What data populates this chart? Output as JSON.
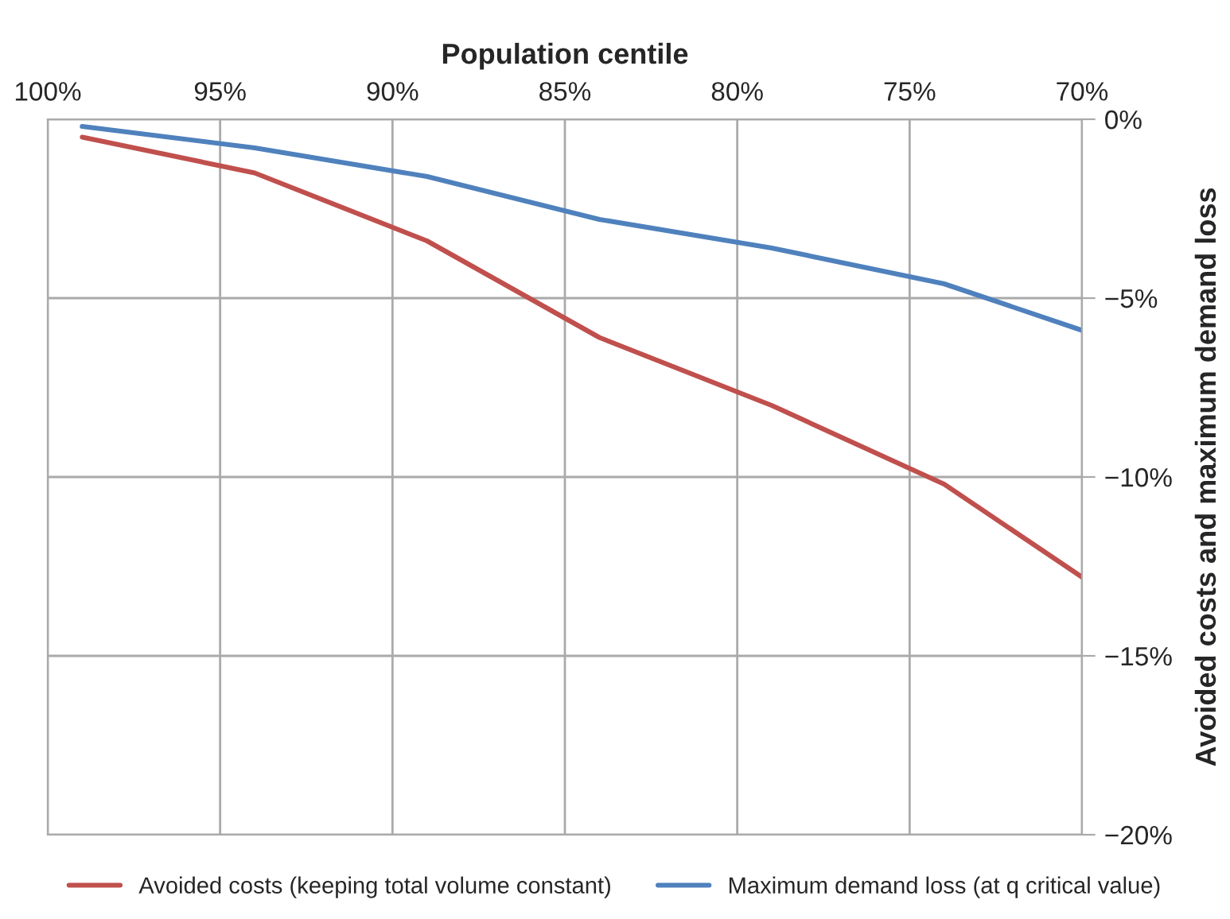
{
  "chart_data": {
    "type": "line",
    "xlabel": "Population centile",
    "ylabel": "Avoided costs and maximum demand loss",
    "x": [
      99,
      94,
      89,
      84,
      79,
      74,
      70
    ],
    "series": [
      {
        "name": "Avoided costs (keeping total volume constant)",
        "color": "#c0504d",
        "values": [
          -0.5,
          -1.5,
          -3.4,
          -6.1,
          -8.0,
          -10.2,
          -12.8
        ]
      },
      {
        "name": "Maximum demand loss (at q critical value)",
        "color": "#4f81bd",
        "values": [
          -0.2,
          -0.8,
          -1.6,
          -2.8,
          -3.6,
          -4.6,
          -5.9
        ]
      }
    ],
    "xlim": [
      100,
      70
    ],
    "xticks": [
      {
        "value": 100,
        "label": "100%"
      },
      {
        "value": 95,
        "label": "95%"
      },
      {
        "value": 90,
        "label": "90%"
      },
      {
        "value": 85,
        "label": "85%"
      },
      {
        "value": 80,
        "label": "80%"
      },
      {
        "value": 75,
        "label": "75%"
      },
      {
        "value": 70,
        "label": "70%"
      }
    ],
    "ylim": [
      -20,
      0
    ],
    "yticks": [
      {
        "value": 0,
        "label": "0%"
      },
      {
        "value": -5,
        "label": "−5%"
      },
      {
        "value": -10,
        "label": "−10%"
      },
      {
        "value": -15,
        "label": "−15%"
      },
      {
        "value": -20,
        "label": "−20%"
      }
    ],
    "grid": true,
    "legend": "bottom",
    "marker": "none",
    "line_style": "solid"
  }
}
